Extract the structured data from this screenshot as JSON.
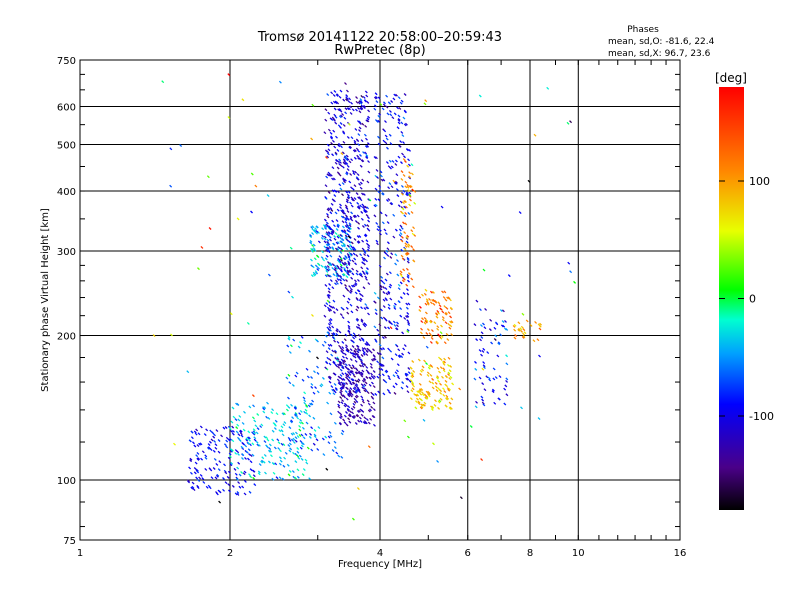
{
  "header": {
    "title_line1": "Tromsø 20141122 20:58:00–20:59:43",
    "title_line2": "RwPretec (8p)",
    "stats_heading": "Phases",
    "stats_line1": "mean, sd,O: -81.6, 22.4",
    "stats_line2": "mean, sd,X:  96.7, 23.6"
  },
  "colorbar": {
    "unit": "[deg]",
    "ticks": [
      "100",
      "0",
      "-100"
    ],
    "tick_values": [
      100,
      0,
      -100
    ],
    "range": [
      -180,
      180
    ]
  },
  "chart_data": {
    "type": "scatter",
    "xlabel": "Frequency [MHz]",
    "ylabel": "Stationary phase Virtual Height [km]",
    "xscale": "log",
    "yscale": "log",
    "xlim": [
      1,
      16
    ],
    "ylim": [
      75,
      750
    ],
    "xticks": [
      1,
      2,
      4,
      6,
      8,
      10,
      16
    ],
    "yticks": [
      75,
      100,
      200,
      300,
      400,
      500,
      600,
      750
    ],
    "grid": true,
    "colorscale": "rainbow phase [deg]",
    "clusters": [
      {
        "name": "",
        "x_range": [
          1.65,
          2.25
        ],
        "y_range": [
          93,
          130
        ],
        "phase_mean": -95,
        "phase_sd": 15,
        "count": 160
      },
      {
        "name": "",
        "x_range": [
          2.0,
          2.9
        ],
        "y_range": [
          100,
          145
        ],
        "phase_mean": -35,
        "phase_sd": 20,
        "count": 180
      },
      {
        "name": "",
        "x_range": [
          2.6,
          3.4
        ],
        "y_range": [
          110,
          200
        ],
        "phase_mean": -60,
        "phase_sd": 25,
        "count": 120
      },
      {
        "name": "",
        "x_range": [
          2.9,
          3.5
        ],
        "y_range": [
          265,
          340
        ],
        "phase_mean": -40,
        "phase_sd": 20,
        "count": 160
      },
      {
        "name": "",
        "x_range": [
          3.1,
          3.8
        ],
        "y_range": [
          150,
          650
        ],
        "phase_mean": -105,
        "phase_sd": 20,
        "count": 700
      },
      {
        "name": "",
        "x_range": [
          3.3,
          3.9
        ],
        "y_range": [
          130,
          190
        ],
        "phase_mean": -125,
        "phase_sd": 15,
        "count": 200
      },
      {
        "name": "",
        "x_range": [
          3.9,
          4.6
        ],
        "y_range": [
          150,
          640
        ],
        "phase_mean": -95,
        "phase_sd": 20,
        "count": 320
      },
      {
        "name": "",
        "x_range": [
          4.4,
          4.7
        ],
        "y_range": [
          250,
          480
        ],
        "phase_mean": 110,
        "phase_sd": 25,
        "count": 70
      },
      {
        "name": "",
        "x_range": [
          4.6,
          5.6
        ],
        "y_range": [
          140,
          180
        ],
        "phase_mean": 85,
        "phase_sd": 20,
        "count": 130
      },
      {
        "name": "",
        "x_range": [
          4.8,
          5.6
        ],
        "y_range": [
          190,
          250
        ],
        "phase_mean": 115,
        "phase_sd": 25,
        "count": 90
      },
      {
        "name": "",
        "x_range": [
          6.2,
          7.2
        ],
        "y_range": [
          140,
          230
        ],
        "phase_mean": -90,
        "phase_sd": 30,
        "count": 70
      },
      {
        "name": "",
        "x_range": [
          7.4,
          8.4
        ],
        "y_range": [
          195,
          215
        ],
        "phase_mean": 95,
        "phase_sd": 15,
        "count": 25
      },
      {
        "name": "",
        "x_range": [
          1.4,
          10.0
        ],
        "y_range": [
          80,
          700
        ],
        "phase_mean": 0,
        "phase_sd": 90,
        "count": 90
      }
    ]
  }
}
